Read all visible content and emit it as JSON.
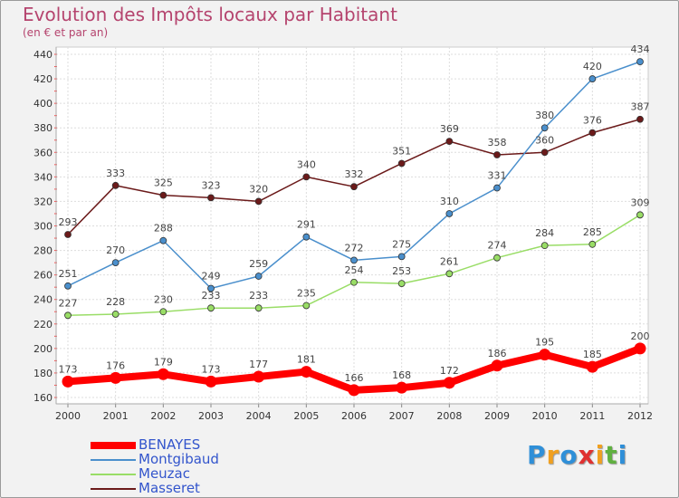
{
  "chart_data": {
    "type": "line",
    "title": "Evolution des Impôts locaux par Habitant",
    "subtitle": "(en € et par an)",
    "categories": [
      "2000",
      "2001",
      "2002",
      "2003",
      "2004",
      "2005",
      "2006",
      "2007",
      "2008",
      "2009",
      "2010",
      "2011",
      "2012"
    ],
    "ylim": [
      160,
      440
    ],
    "yticks": [
      160,
      180,
      200,
      220,
      240,
      260,
      280,
      300,
      320,
      340,
      360,
      380,
      400,
      420,
      440
    ],
    "grid": true,
    "legend_position": "bottom-left",
    "series": [
      {
        "name": "Masseret",
        "color": "#6b1a1a",
        "values": [
          293,
          333,
          325,
          323,
          320,
          340,
          332,
          351,
          369,
          358,
          360,
          376,
          387
        ]
      },
      {
        "name": "Montgibaud",
        "color": "#4a8fcc",
        "values": [
          251,
          270,
          288,
          249,
          259,
          291,
          272,
          275,
          310,
          331,
          380,
          420,
          434
        ]
      },
      {
        "name": "Meuzac",
        "color": "#99dd66",
        "values": [
          227,
          228,
          230,
          233,
          233,
          235,
          254,
          253,
          261,
          274,
          284,
          285,
          309
        ]
      },
      {
        "name": "BENAYES",
        "color": "#ff0000",
        "values": [
          173,
          176,
          179,
          173,
          177,
          181,
          166,
          168,
          172,
          186,
          195,
          185,
          200
        ]
      }
    ]
  },
  "legend": [
    {
      "label": "BENAYES",
      "color": "#ff0000",
      "label_color": "#3355cc",
      "thick": true
    },
    {
      "label": "Montgibaud",
      "color": "#4a8fcc",
      "label_color": "#3355cc",
      "thick": false
    },
    {
      "label": "Meuzac",
      "color": "#99dd66",
      "label_color": "#3355cc",
      "thick": false
    },
    {
      "label": "Masseret",
      "color": "#6b1a1a",
      "label_color": "#3355cc",
      "thick": false
    }
  ],
  "brand": {
    "letters": [
      "P",
      "r",
      "o",
      "x",
      "i",
      "t",
      "i"
    ],
    "colors": [
      "#2f8fd8",
      "#f0a020",
      "#2f8fd8",
      "#e03030",
      "#f0a020",
      "#60b040",
      "#2f8fd8"
    ]
  }
}
